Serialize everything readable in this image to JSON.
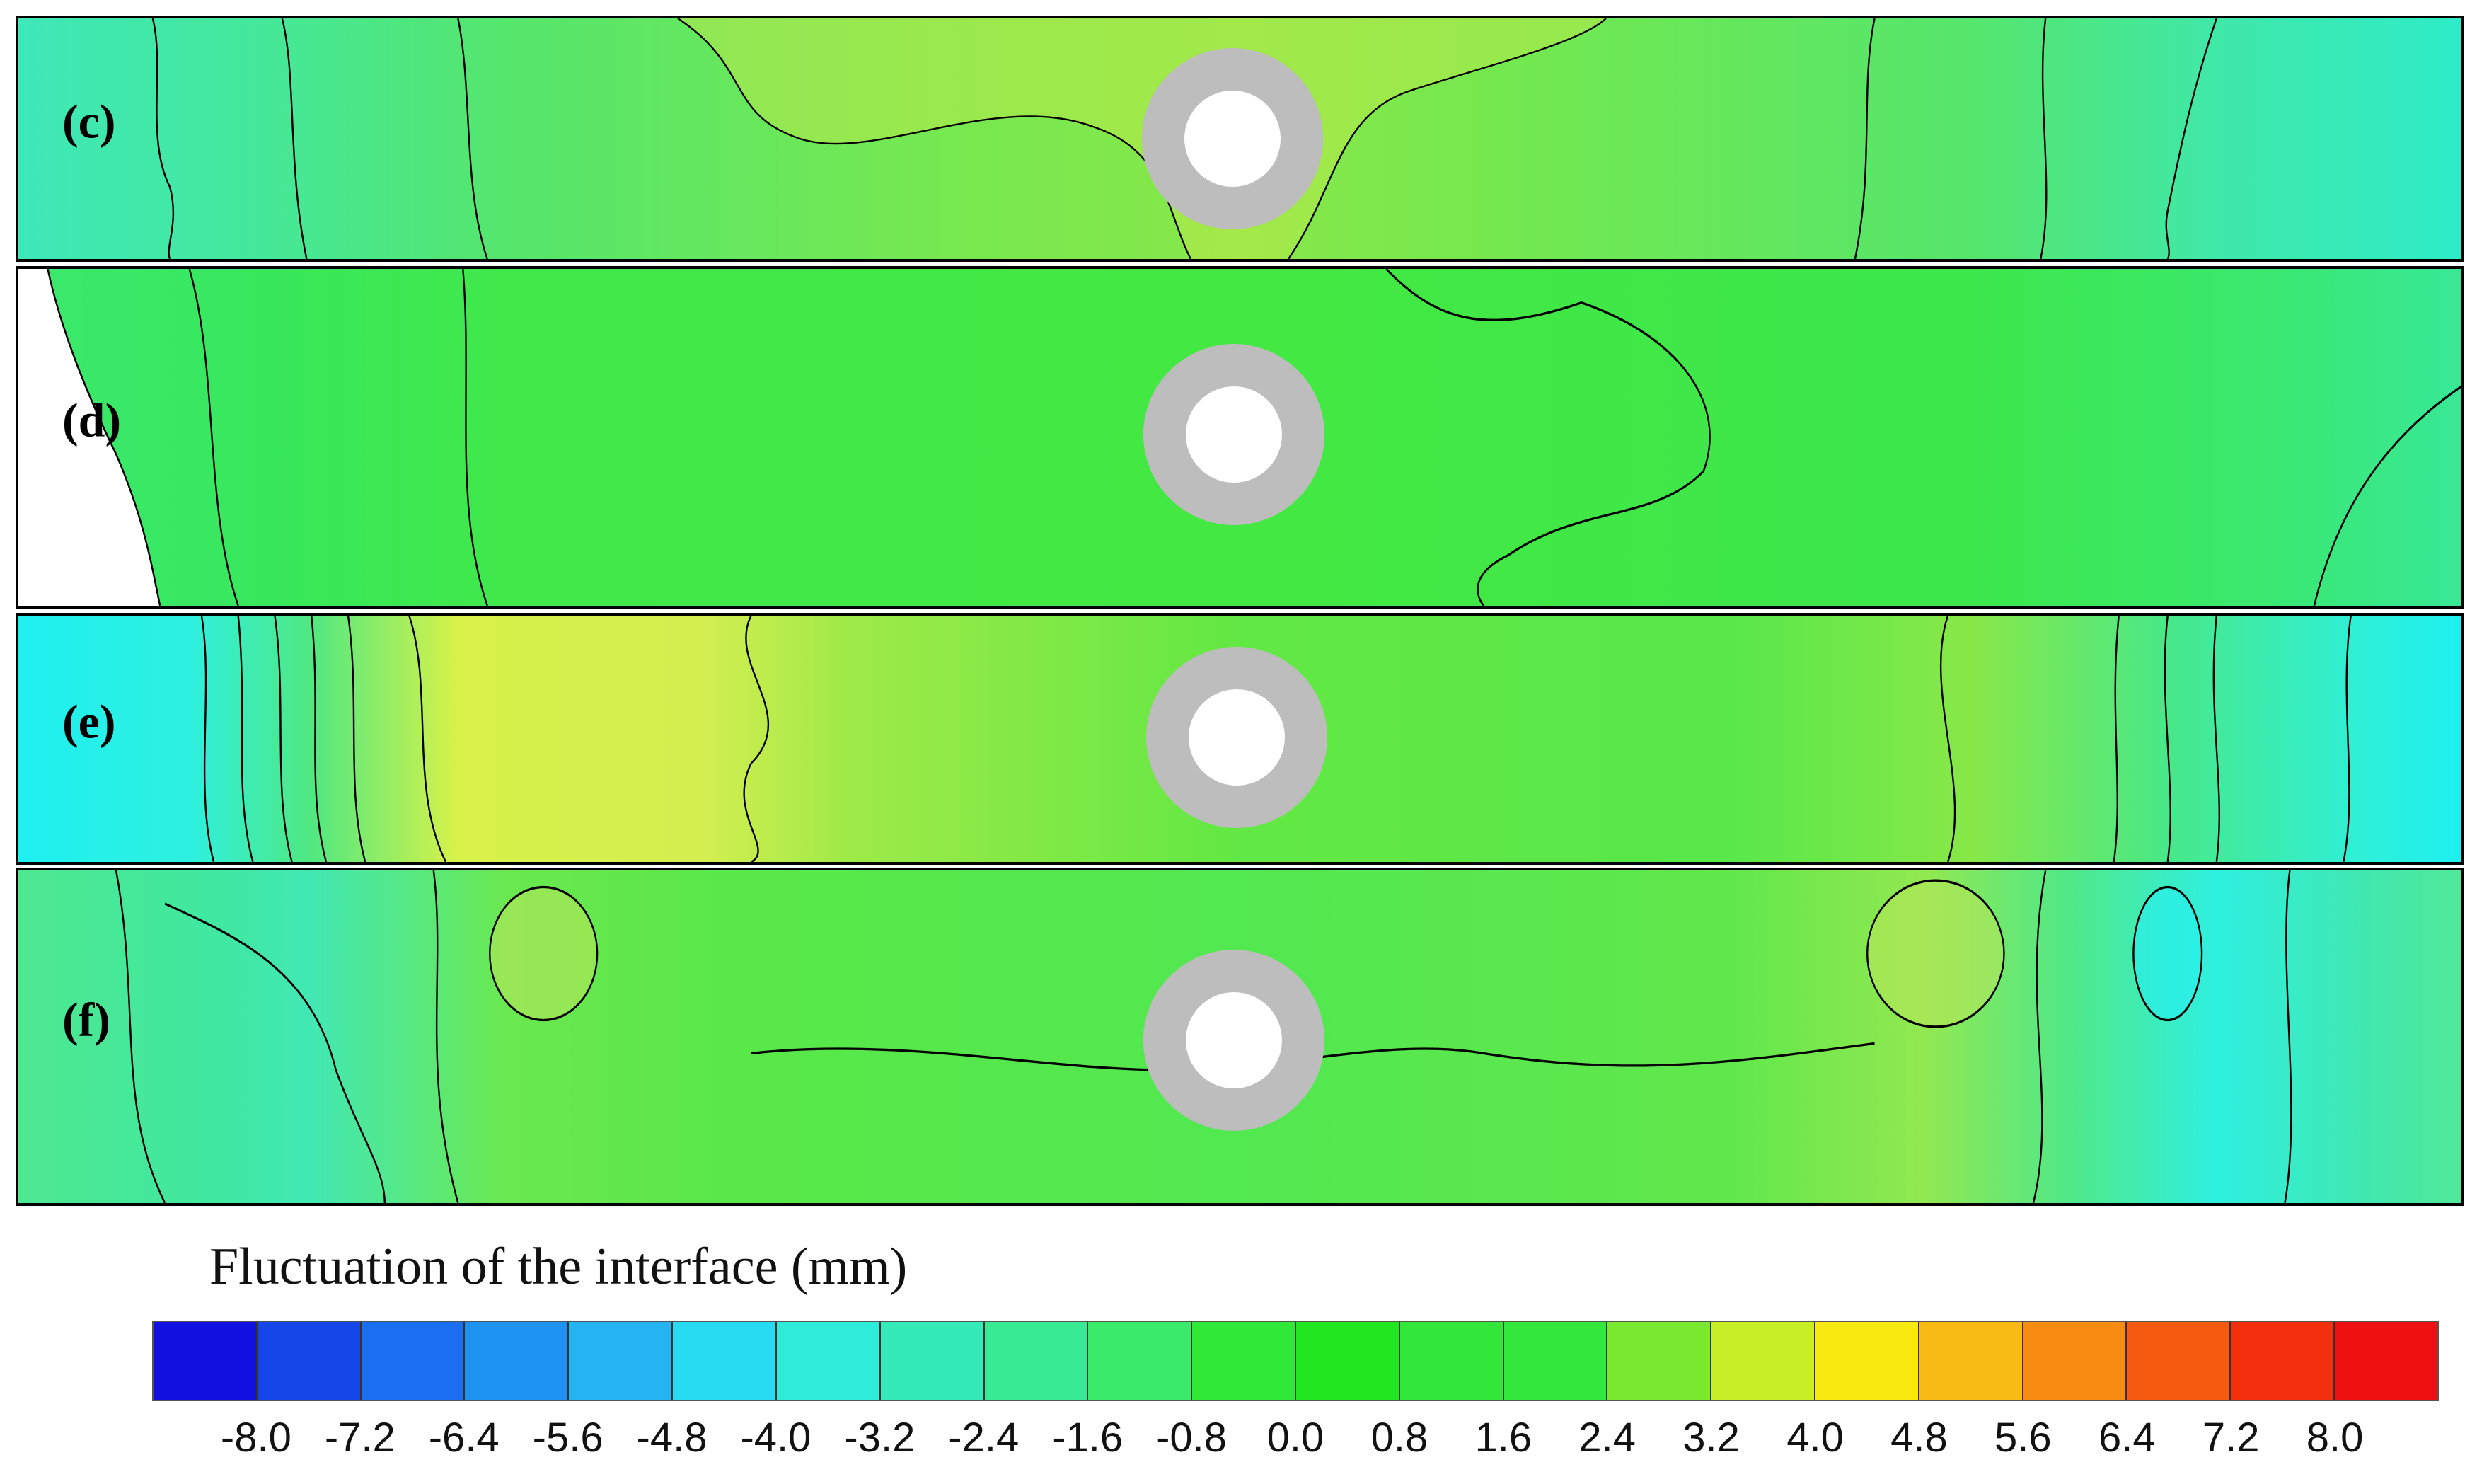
{
  "panels": [
    {
      "id": "c",
      "label": "(c)"
    },
    {
      "id": "d",
      "label": "(d)"
    },
    {
      "id": "e",
      "label": "(e)"
    },
    {
      "id": "f",
      "label": "(f)"
    }
  ],
  "legend": {
    "title": "Fluctuation of the interface (mm)",
    "ticks": [
      "-8.0",
      "-7.2",
      "-6.4",
      "-5.6",
      "-4.8",
      "-4.0",
      "-3.2",
      "-2.4",
      "-1.6",
      "-0.8",
      "0.0",
      "0.8",
      "1.6",
      "2.4",
      "3.2",
      "4.0",
      "4.8",
      "5.6",
      "6.4",
      "7.2",
      "8.0"
    ],
    "colors": [
      "#1010e0",
      "#1446e8",
      "#1a6ef0",
      "#1e92f0",
      "#24b4f2",
      "#27dcf2",
      "#2eecd8",
      "#33eab8",
      "#38ea94",
      "#3aea6a",
      "#2fe838",
      "#22e620",
      "#33e63a",
      "#32e83c",
      "#7ae82e",
      "#c8ee28",
      "#f8ea10",
      "#f8ba14",
      "#f88c10",
      "#f65a10",
      "#f2300e",
      "#ee1010"
    ]
  }
}
